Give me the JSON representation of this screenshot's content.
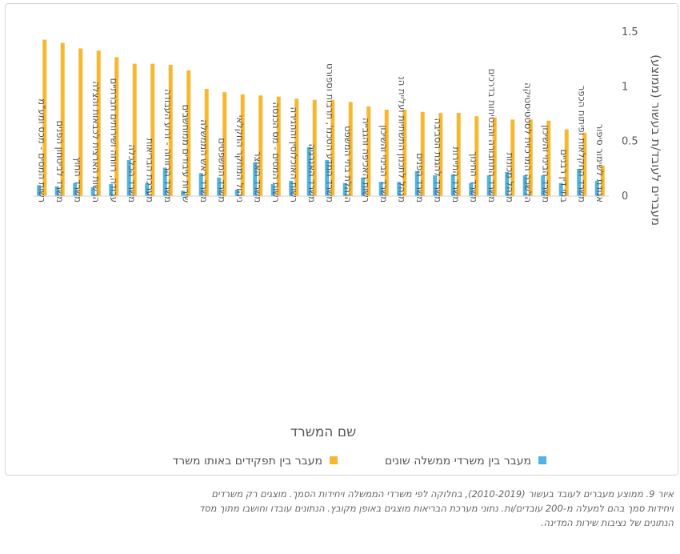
{
  "chart_data": {
    "type": "bar",
    "ylabel": "מעברים לעובד/ת בעשור (ממוצע)",
    "xlabel": "שם המשרד",
    "ylim": [
      0,
      1.5
    ],
    "yticks": [
      "1.5",
      "1",
      "0.5",
      "0"
    ],
    "grid": false,
    "legend_position": "bottom",
    "categories": [
      "רשות המסים - מכס ומע\"מ",
      "משרד לביטחון הפנים",
      "משרד החוץ",
      "הרשות הארצית לכבאות והצלה",
      "עבודה, רווחה ושירותים חברתיים",
      "משרד הכלכלה",
      "מערכת הבריאות",
      "משרד הרווחה - זרוע העבודה",
      "שירות עיבודים ממוחשבים",
      "משרד ראש הממשלה",
      "משרד המשפטים",
      "ניהול המחקר החקלאי",
      "משרד האוצר",
      "רשות המסים - מס הכנסה",
      "רשות האוכלוסין וההגירה",
      "משרד האנרגיה",
      "משרד המדע הטכנו', תרבות וספורט",
      "הנהלת בתי המשפט",
      "רשות האכיפה והגבייה",
      "משרד הבינוי והשיכון",
      "מנהל לתכנון התשתיות ועליית הנ",
      "משרד הפנים",
      "משרד להגנת הסביבה",
      "משרד התיירות",
      "משרד החינוך",
      "משרד התחבורה והבטיחות בדרכים",
      "מנהל מכונות",
      "הלשכה המרכזית לסטטיסטיקה",
      "משרד הבינוי והשיכון",
      "בתי דין רבניים",
      "משרד החקלאות ופיתוח הכפר",
      "אגודת לשימור סיפור"
    ],
    "series": [
      {
        "name": "מעבר בין תפקידים באותו משרד",
        "color": "#f5b82e",
        "values": [
          1.43,
          1.4,
          1.35,
          1.33,
          1.27,
          1.21,
          1.21,
          1.2,
          1.15,
          0.98,
          0.95,
          0.93,
          0.92,
          0.91,
          0.89,
          0.88,
          0.88,
          0.86,
          0.82,
          0.79,
          0.79,
          0.77,
          0.76,
          0.76,
          0.73,
          0.72,
          0.7,
          0.7,
          0.69,
          0.61,
          0.58,
          0.28
        ]
      },
      {
        "name": "מעבר בין משרדי ממשלה שונים",
        "color": "#4fb3e6",
        "values": [
          0.1,
          0.09,
          0.12,
          0.08,
          0.11,
          0.33,
          0.12,
          0.26,
          0.05,
          0.21,
          0.17,
          0.06,
          0.31,
          0.11,
          0.14,
          0.45,
          0.33,
          0.12,
          0.17,
          0.13,
          0.13,
          0.23,
          0.19,
          0.2,
          0.12,
          0.19,
          0.22,
          0.19,
          0.19,
          0.12,
          0.25,
          0.14
        ]
      }
    ]
  },
  "caption": {
    "line1": "איור 9. ממוצע מעברים לעובד בעשור (2010-2019), בחלוקה לפי משרדי הממשלה ויחידות הסמך. מוצגים רק משרדים",
    "line2": "ויחידות סמך בהם למעלה מ-200 עובדים/ות. נתוני מערכת הבריאות מוצגים באופן מקובץ. הנתונים עובדו וחושבו מתוך מסד",
    "line3": "הנתונים של נציבות שירות המדינה."
  }
}
